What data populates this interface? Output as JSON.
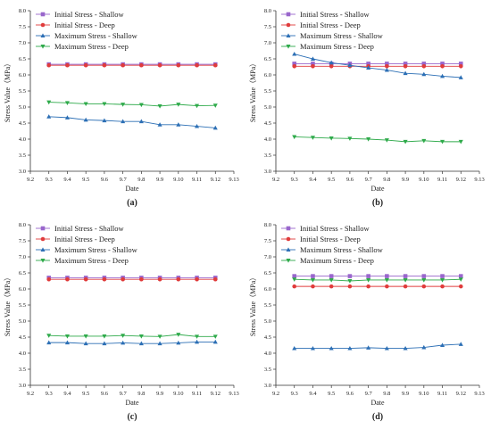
{
  "chart_data": [
    {
      "type": "line",
      "panel_label": "(a)",
      "xlabel": "Date",
      "ylabel": "Stress Value（MPa）",
      "x_ticks": [
        "9.2",
        "9.3",
        "9.4",
        "9.5",
        "9.6",
        "9.7",
        "9.8",
        "9.9",
        "9.10",
        "9.11",
        "9.12",
        "9.13"
      ],
      "categories": [
        "9.3",
        "9.4",
        "9.5",
        "9.6",
        "9.7",
        "9.8",
        "9.9",
        "9.10",
        "9.11",
        "9.12"
      ],
      "ylim": [
        3.0,
        8.0
      ],
      "legend_position": "top-left",
      "series": [
        {
          "name": "Initial Stress - Shallow",
          "marker": "square",
          "color": "#9966CC",
          "values": [
            6.33,
            6.33,
            6.33,
            6.33,
            6.33,
            6.33,
            6.33,
            6.33,
            6.33,
            6.33
          ]
        },
        {
          "name": "Initial Stress - Deep",
          "marker": "circle",
          "color": "#E03C3C",
          "values": [
            6.3,
            6.3,
            6.3,
            6.3,
            6.3,
            6.3,
            6.3,
            6.3,
            6.3,
            6.3
          ]
        },
        {
          "name": "Maximum Stress - Shallow",
          "marker": "triangle-up",
          "color": "#2C6FB5",
          "values": [
            4.7,
            4.67,
            4.6,
            4.58,
            4.55,
            4.55,
            4.45,
            4.45,
            4.4,
            4.35
          ]
        },
        {
          "name": "Maximum Stress - Deep",
          "marker": "triangle-down",
          "color": "#2EAA4A",
          "values": [
            5.15,
            5.13,
            5.1,
            5.1,
            5.08,
            5.07,
            5.03,
            5.08,
            5.04,
            5.05
          ]
        }
      ]
    },
    {
      "type": "line",
      "panel_label": "(b)",
      "xlabel": "Date",
      "ylabel": "Stress Value（MPa）",
      "x_ticks": [
        "9.2",
        "9.3",
        "9.4",
        "9.5",
        "9.6",
        "9.7",
        "9.8",
        "9.9",
        "9.10",
        "9.11",
        "9.12",
        "9.13"
      ],
      "categories": [
        "9.3",
        "9.4",
        "9.5",
        "9.6",
        "9.7",
        "9.8",
        "9.9",
        "9.10",
        "9.11",
        "9.12"
      ],
      "ylim": [
        3.0,
        8.0
      ],
      "legend_position": "top-left",
      "series": [
        {
          "name": "Initial Stress - Shallow",
          "marker": "square",
          "color": "#9966CC",
          "values": [
            6.35,
            6.35,
            6.35,
            6.35,
            6.35,
            6.35,
            6.35,
            6.35,
            6.35,
            6.35
          ]
        },
        {
          "name": "Initial Stress - Deep",
          "marker": "circle",
          "color": "#E03C3C",
          "values": [
            6.27,
            6.27,
            6.27,
            6.27,
            6.27,
            6.27,
            6.27,
            6.27,
            6.27,
            6.27
          ]
        },
        {
          "name": "Maximum Stress - Shallow",
          "marker": "triangle-up",
          "color": "#2C6FB5",
          "values": [
            6.65,
            6.5,
            6.38,
            6.3,
            6.22,
            6.15,
            6.05,
            6.02,
            5.96,
            5.92
          ]
        },
        {
          "name": "Maximum Stress - Deep",
          "marker": "triangle-down",
          "color": "#2EAA4A",
          "values": [
            4.07,
            4.05,
            4.03,
            4.02,
            4.0,
            3.97,
            3.92,
            3.95,
            3.92,
            3.92
          ]
        }
      ]
    },
    {
      "type": "line",
      "panel_label": "(c)",
      "xlabel": "Date",
      "ylabel": "Stress Value（MPa）",
      "x_ticks": [
        "9.2",
        "9.3",
        "9.4",
        "9.5",
        "9.6",
        "9.7",
        "9.8",
        "9.9",
        "9.10",
        "9.11",
        "9.12",
        "9.13"
      ],
      "categories": [
        "9.3",
        "9.4",
        "9.5",
        "9.6",
        "9.7",
        "9.8",
        "9.9",
        "9.10",
        "9.11",
        "9.12"
      ],
      "ylim": [
        3.0,
        8.0
      ],
      "legend_position": "top-left",
      "series": [
        {
          "name": "Initial Stress - Shallow",
          "marker": "square",
          "color": "#9966CC",
          "values": [
            6.35,
            6.35,
            6.35,
            6.35,
            6.35,
            6.35,
            6.35,
            6.35,
            6.35,
            6.35
          ]
        },
        {
          "name": "Initial Stress - Deep",
          "marker": "circle",
          "color": "#E03C3C",
          "values": [
            6.3,
            6.3,
            6.3,
            6.3,
            6.3,
            6.3,
            6.3,
            6.3,
            6.3,
            6.3
          ]
        },
        {
          "name": "Maximum Stress - Shallow",
          "marker": "triangle-up",
          "color": "#2C6FB5",
          "values": [
            4.33,
            4.33,
            4.3,
            4.3,
            4.32,
            4.3,
            4.3,
            4.32,
            4.35,
            4.35
          ]
        },
        {
          "name": "Maximum Stress - Deep",
          "marker": "triangle-down",
          "color": "#2EAA4A",
          "values": [
            4.55,
            4.53,
            4.53,
            4.53,
            4.55,
            4.53,
            4.52,
            4.58,
            4.52,
            4.52
          ]
        }
      ]
    },
    {
      "type": "line",
      "panel_label": "(d)",
      "xlabel": "Date",
      "ylabel": "Stress Value（MPa）",
      "x_ticks": [
        "9.2",
        "9.3",
        "9.4",
        "9.5",
        "9.6",
        "9.7",
        "9.8",
        "9.9",
        "9.10",
        "9.11",
        "9.12",
        "9.13"
      ],
      "categories": [
        "9.3",
        "9.4",
        "9.5",
        "9.6",
        "9.7",
        "9.8",
        "9.9",
        "9.10",
        "9.11",
        "9.12"
      ],
      "ylim": [
        3.0,
        8.0
      ],
      "legend_position": "top-left",
      "series": [
        {
          "name": "Initial Stress - Shallow",
          "marker": "square",
          "color": "#9966CC",
          "values": [
            6.4,
            6.4,
            6.4,
            6.4,
            6.4,
            6.4,
            6.4,
            6.4,
            6.4,
            6.4
          ]
        },
        {
          "name": "Initial Stress - Deep",
          "marker": "circle",
          "color": "#E03C3C",
          "values": [
            6.08,
            6.08,
            6.08,
            6.08,
            6.08,
            6.08,
            6.08,
            6.08,
            6.08,
            6.08
          ]
        },
        {
          "name": "Maximum Stress - Shallow",
          "marker": "triangle-up",
          "color": "#2C6FB5",
          "values": [
            4.15,
            4.15,
            4.15,
            4.15,
            4.17,
            4.15,
            4.15,
            4.18,
            4.25,
            4.28
          ]
        },
        {
          "name": "Maximum Stress - Deep",
          "marker": "triangle-down",
          "color": "#2EAA4A",
          "values": [
            6.3,
            6.28,
            6.28,
            6.25,
            6.28,
            6.28,
            6.28,
            6.28,
            6.28,
            6.3
          ]
        }
      ]
    }
  ]
}
